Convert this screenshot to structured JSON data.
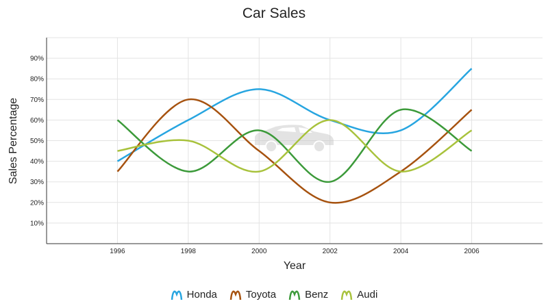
{
  "chart_data": {
    "type": "line",
    "title": "Car Sales",
    "xlabel": "Year",
    "ylabel": "Sales Percentage",
    "x": [
      1996,
      1998,
      2000,
      2002,
      2004,
      2006
    ],
    "xlim": [
      1994,
      2008
    ],
    "ylim": [
      0,
      100
    ],
    "x_ticks": [
      "1996",
      "1998",
      "2000",
      "2002",
      "2004",
      "2006"
    ],
    "y_ticks": [
      "10%",
      "20%",
      "30%",
      "40%",
      "50%",
      "60%",
      "70%",
      "80%",
      "90%"
    ],
    "grid": true,
    "legend_position": "bottom",
    "series": [
      {
        "name": "Honda",
        "color": "#27a5e0",
        "values": [
          40,
          60,
          75,
          60,
          55,
          85
        ]
      },
      {
        "name": "Toyota",
        "color": "#a6520f",
        "values": [
          35,
          70,
          45,
          20,
          35,
          65
        ]
      },
      {
        "name": "Benz",
        "color": "#3c9a3a",
        "values": [
          60,
          35,
          55,
          30,
          65,
          45
        ]
      },
      {
        "name": "Audi",
        "color": "#a8c23c",
        "values": [
          45,
          50,
          35,
          60,
          35,
          55
        ]
      }
    ],
    "watermark": "car-icon"
  }
}
